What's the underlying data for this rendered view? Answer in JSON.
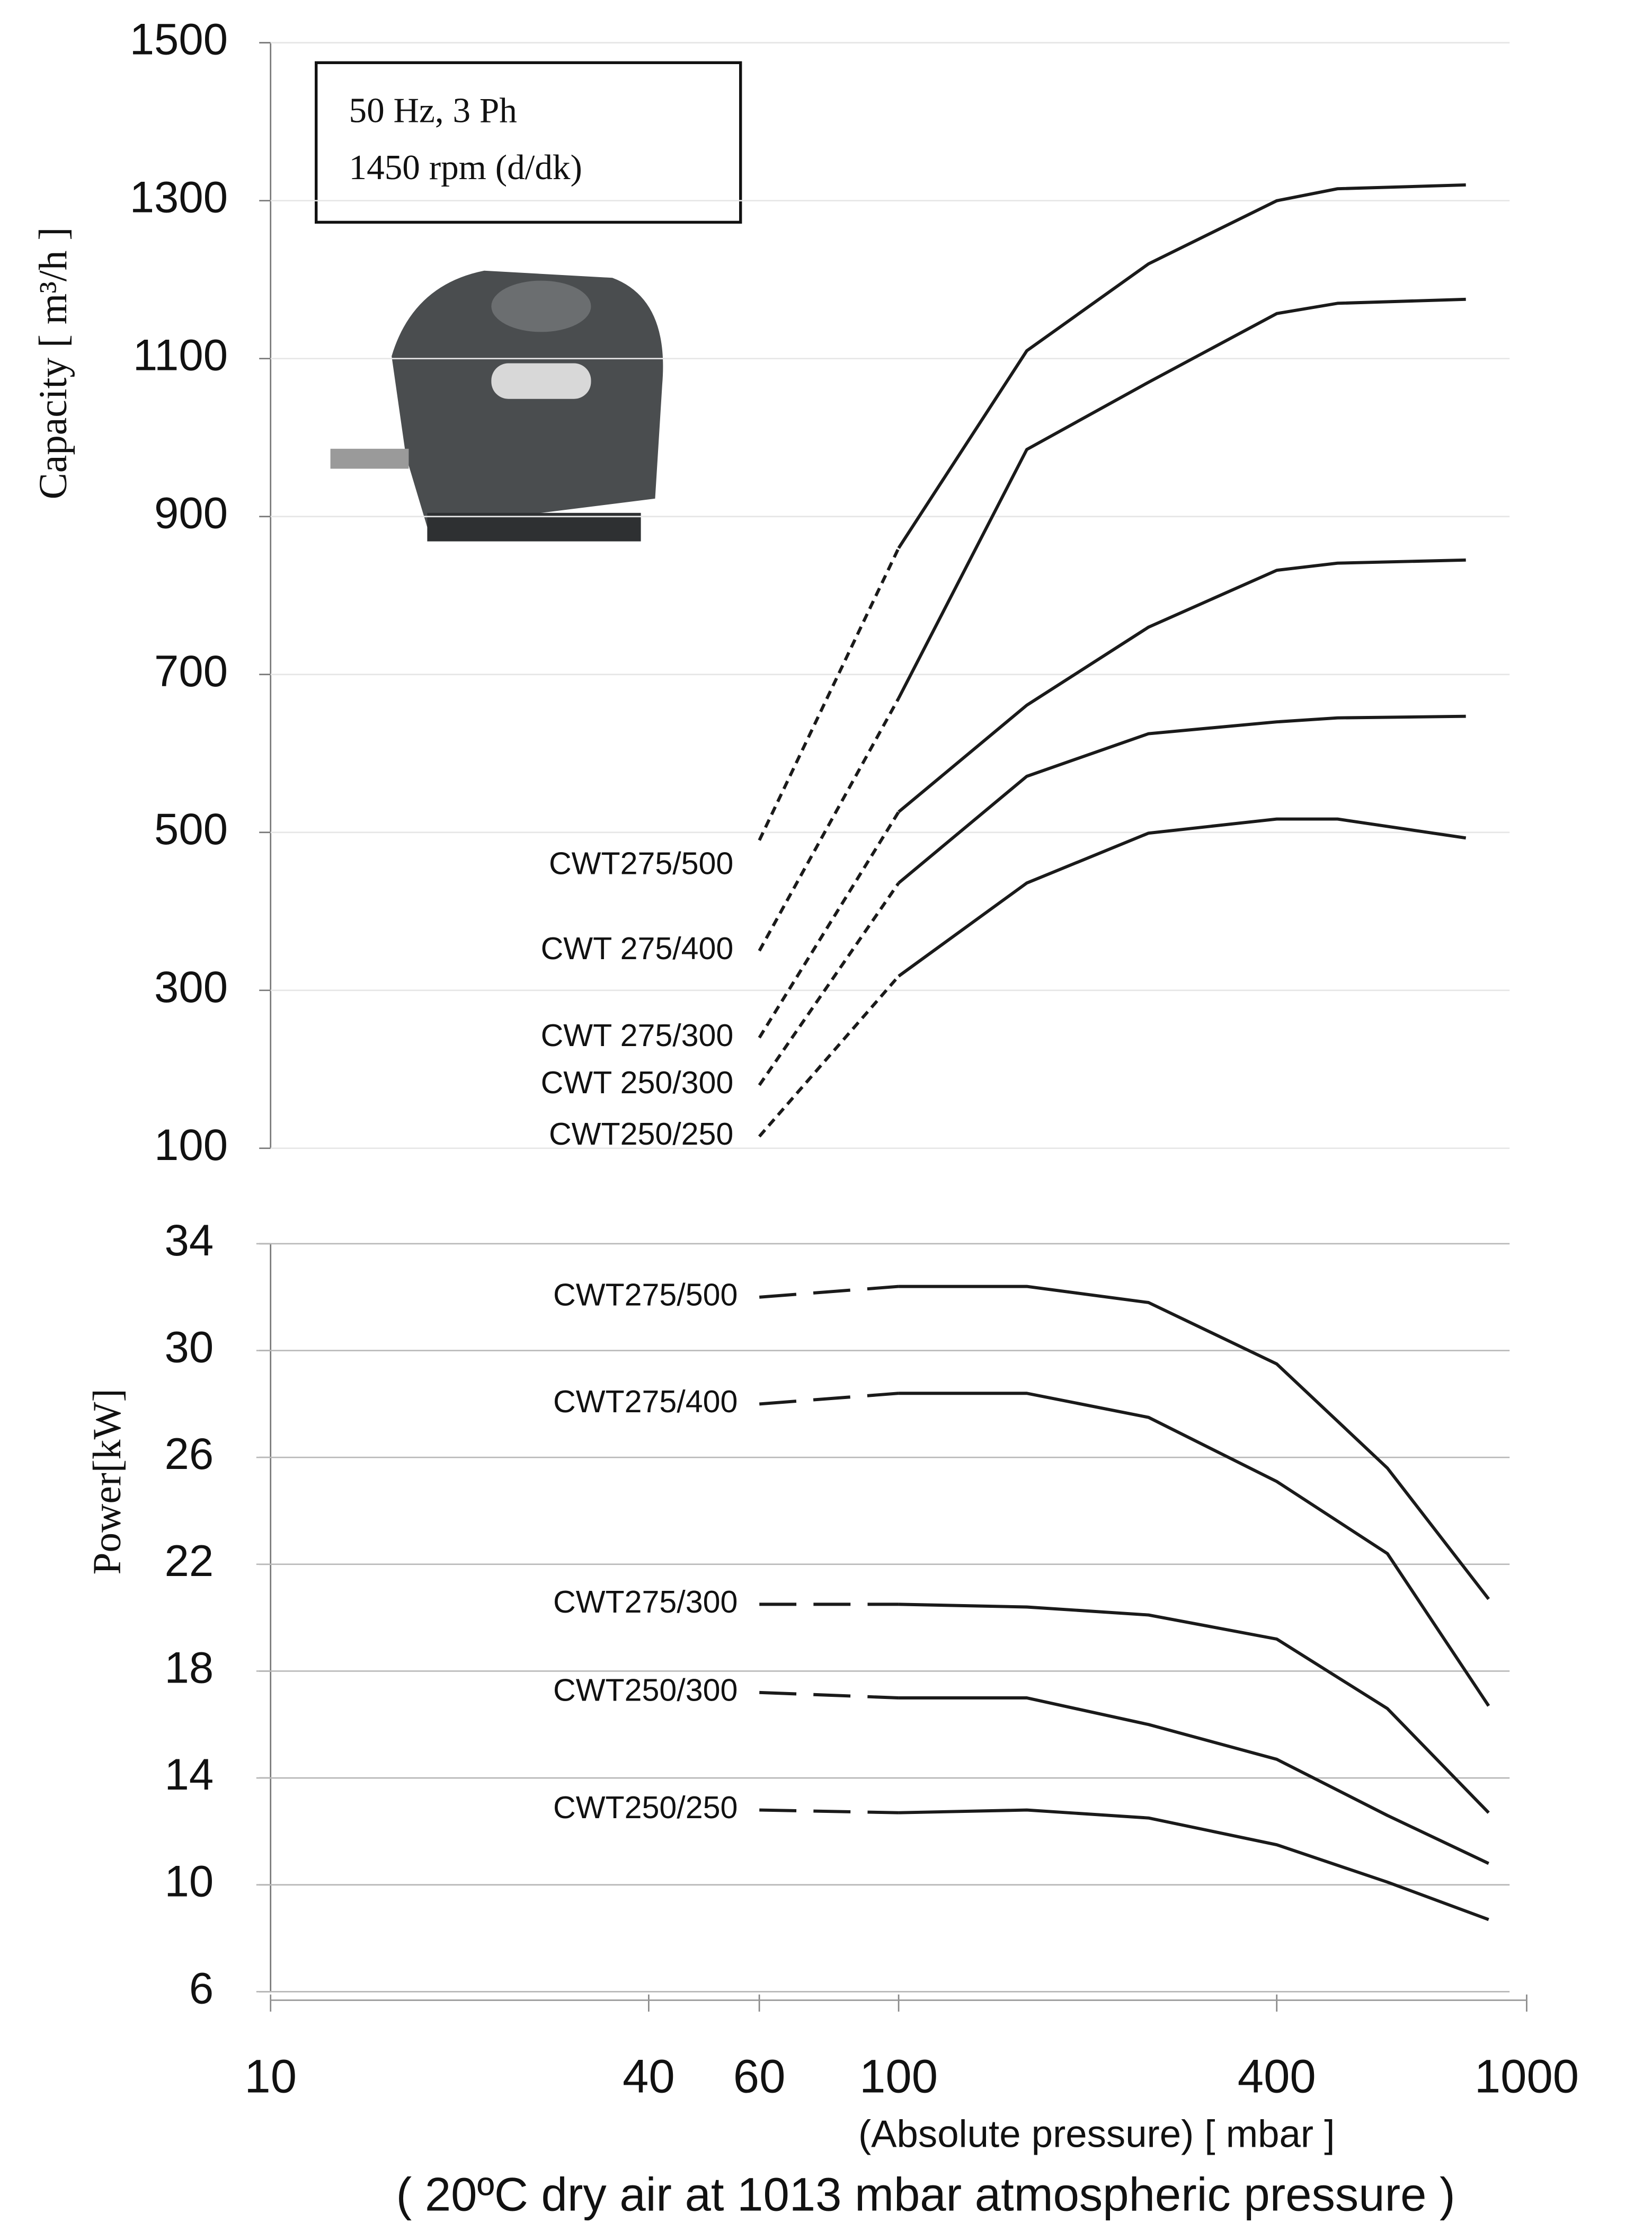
{
  "chart_data": [
    {
      "type": "line",
      "xscale": "log",
      "grid": true,
      "color": "#1a1a1a",
      "annotation": [
        "50 Hz, 3 Ph",
        "1450 rpm (d/dk)"
      ],
      "y_label": "Capacity [ m³/h ]",
      "xlim": [
        10,
        1000
      ],
      "ylim": [
        100,
        1500
      ],
      "yticks": [
        100,
        300,
        500,
        700,
        900,
        1100,
        1300,
        1500
      ],
      "series": [
        {
          "name": "CWT275/500",
          "segments": [
            {
              "style": "dashed",
              "x": [
                60,
                100
              ],
              "values": [
                490,
                860
              ]
            },
            {
              "style": "solid",
              "x": [
                100,
                160,
                250,
                400,
                500,
                800
              ],
              "values": [
                860,
                1110,
                1220,
                1300,
                1315,
                1320
              ]
            }
          ]
        },
        {
          "name": "CWT 275/400",
          "segments": [
            {
              "style": "dashed",
              "x": [
                60,
                100
              ],
              "values": [
                350,
                670
              ]
            },
            {
              "style": "solid",
              "x": [
                100,
                160,
                250,
                400,
                500,
                800
              ],
              "values": [
                670,
                985,
                1070,
                1157,
                1170,
                1175
              ]
            }
          ]
        },
        {
          "name": "CWT 275/300",
          "segments": [
            {
              "style": "dashed",
              "x": [
                60,
                100
              ],
              "values": [
                240,
                526
              ]
            },
            {
              "style": "solid",
              "x": [
                100,
                160,
                250,
                400,
                500,
                800
              ],
              "values": [
                526,
                661,
                760,
                832,
                841,
                845
              ]
            }
          ]
        },
        {
          "name": "CWT 250/300",
          "segments": [
            {
              "style": "dashed",
              "x": [
                60,
                100
              ],
              "values": [
                180,
                436
              ]
            },
            {
              "style": "solid",
              "x": [
                100,
                160,
                250,
                400,
                500,
                800
              ],
              "values": [
                436,
                571,
                625,
                640,
                645,
                647
              ]
            }
          ]
        },
        {
          "name": "CWT250/250",
          "segments": [
            {
              "style": "dashed",
              "x": [
                60,
                100
              ],
              "values": [
                115,
                318
              ]
            },
            {
              "style": "solid",
              "x": [
                100,
                160,
                250,
                400,
                500,
                800
              ],
              "values": [
                318,
                436,
                499,
                517,
                517,
                493
              ]
            }
          ]
        }
      ]
    },
    {
      "type": "line",
      "xscale": "log",
      "grid": true,
      "color": "#1a1a1a",
      "y_label": "Power[kW]",
      "x_label": "(Absolute pressure) [ mbar ]",
      "note": "( 20ºC dry air at 1013 mbar atmospheric pressure )",
      "xlim": [
        10,
        1000
      ],
      "ylim": [
        6,
        34
      ],
      "xticks": [
        10,
        40,
        60,
        100,
        400,
        1000
      ],
      "yticks": [
        6,
        10,
        14,
        18,
        22,
        26,
        30,
        34
      ],
      "series": [
        {
          "name": "CWT275/500",
          "segments": [
            {
              "style": "dashed",
              "x": [
                60,
                100
              ],
              "values": [
                32,
                32.4
              ]
            },
            {
              "style": "solid",
              "x": [
                100,
                160,
                250,
                400,
                600,
                870
              ],
              "values": [
                32.4,
                32.4,
                31.8,
                29.5,
                25.6,
                20.7
              ]
            }
          ]
        },
        {
          "name": "CWT275/400",
          "segments": [
            {
              "style": "dashed",
              "x": [
                60,
                100
              ],
              "values": [
                28,
                28.4
              ]
            },
            {
              "style": "solid",
              "x": [
                100,
                160,
                250,
                400,
                600,
                870
              ],
              "values": [
                28.4,
                28.4,
                27.5,
                25.1,
                22.4,
                16.7
              ]
            }
          ]
        },
        {
          "name": "CWT275/300",
          "segments": [
            {
              "style": "dashed",
              "x": [
                60,
                100
              ],
              "values": [
                20.5,
                20.5
              ]
            },
            {
              "style": "solid",
              "x": [
                100,
                160,
                250,
                400,
                600,
                870
              ],
              "values": [
                20.5,
                20.4,
                20.1,
                19.2,
                16.6,
                12.7
              ]
            }
          ]
        },
        {
          "name": "CWT250/300",
          "segments": [
            {
              "style": "dashed",
              "x": [
                60,
                100
              ],
              "values": [
                17.2,
                17
              ]
            },
            {
              "style": "solid",
              "x": [
                100,
                160,
                250,
                400,
                600,
                870
              ],
              "values": [
                17,
                17,
                16,
                14.7,
                12.6,
                10.8
              ]
            }
          ]
        },
        {
          "name": "CWT250/250",
          "segments": [
            {
              "style": "dashed",
              "x": [
                60,
                100
              ],
              "values": [
                12.8,
                12.7
              ]
            },
            {
              "style": "solid",
              "x": [
                100,
                160,
                250,
                400,
                600,
                870
              ],
              "values": [
                12.7,
                12.8,
                12.5,
                11.5,
                10.1,
                8.7
              ]
            }
          ]
        }
      ]
    }
  ]
}
